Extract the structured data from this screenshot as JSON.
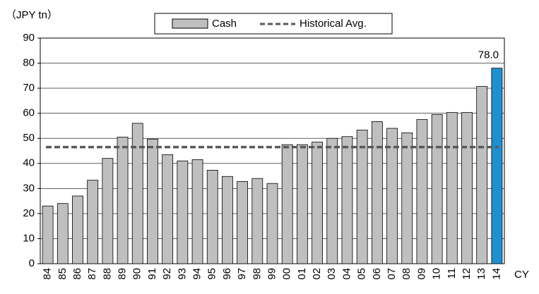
{
  "chart_data": {
    "type": "bar",
    "y_axis_label": "（JPY tn）",
    "x_axis_label": "CY",
    "categories": [
      "84",
      "85",
      "86",
      "87",
      "88",
      "89",
      "90",
      "91",
      "92",
      "93",
      "94",
      "95",
      "96",
      "97",
      "98",
      "99",
      "00",
      "01",
      "02",
      "03",
      "04",
      "05",
      "06",
      "07",
      "08",
      "09",
      "10",
      "11",
      "12",
      "13",
      "14"
    ],
    "series": [
      {
        "name": "Cash",
        "color": "#bfbfbf",
        "values": [
          23,
          24,
          27,
          33.3,
          42,
          50.5,
          56,
          49.7,
          43.5,
          41,
          41.5,
          37.3,
          34.8,
          32.8,
          34,
          32,
          47.5,
          47.5,
          48.5,
          50,
          50.7,
          53.3,
          56.7,
          54,
          52.2,
          57.5,
          59.5,
          60.3,
          60.3,
          70.7,
          78.0
        ],
        "colors": [
          "#bfbfbf",
          "#bfbfbf",
          "#bfbfbf",
          "#bfbfbf",
          "#bfbfbf",
          "#bfbfbf",
          "#bfbfbf",
          "#bfbfbf",
          "#bfbfbf",
          "#bfbfbf",
          "#bfbfbf",
          "#bfbfbf",
          "#bfbfbf",
          "#bfbfbf",
          "#bfbfbf",
          "#bfbfbf",
          "#bfbfbf",
          "#bfbfbf",
          "#bfbfbf",
          "#bfbfbf",
          "#bfbfbf",
          "#bfbfbf",
          "#bfbfbf",
          "#bfbfbf",
          "#bfbfbf",
          "#bfbfbf",
          "#bfbfbf",
          "#bfbfbf",
          "#bfbfbf",
          "#bfbfbf",
          "#1e90d0"
        ],
        "value_labels": [
          null,
          null,
          null,
          null,
          null,
          null,
          null,
          null,
          null,
          null,
          null,
          null,
          null,
          null,
          null,
          null,
          null,
          null,
          null,
          null,
          null,
          null,
          null,
          null,
          null,
          null,
          null,
          null,
          null,
          null,
          "78.0"
        ]
      }
    ],
    "reference": {
      "name": "Historical Avg.",
      "value": 46.5,
      "color": "#595959"
    },
    "ylim": [
      0,
      90
    ],
    "yticks": [
      0,
      10,
      20,
      30,
      40,
      50,
      60,
      70,
      80,
      90
    ],
    "grid": true
  }
}
